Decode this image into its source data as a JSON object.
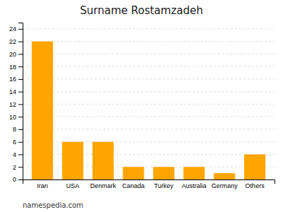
{
  "chart_data": {
    "type": "bar",
    "title": "Surname Rostamzadeh",
    "categories": [
      "Iran",
      "USA",
      "Denmark",
      "Canada",
      "Turkey",
      "Australia",
      "Germany",
      "Others"
    ],
    "values": [
      22,
      6,
      6,
      2,
      2,
      2,
      1,
      4
    ],
    "color": "#FFA500",
    "ylim": [
      0,
      25
    ],
    "yticks": [
      0,
      2,
      4,
      6,
      8,
      10,
      12,
      14,
      16,
      18,
      20,
      22,
      24
    ],
    "grid": true,
    "annotations": [
      "namespedia.com"
    ]
  }
}
